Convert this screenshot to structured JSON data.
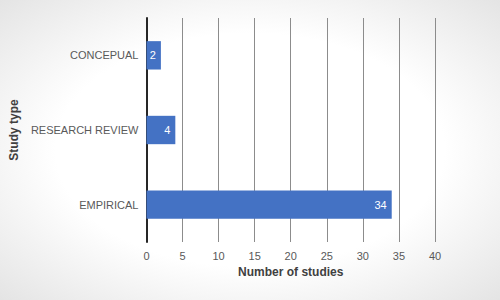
{
  "chart_data": {
    "type": "bar",
    "orientation": "horizontal",
    "categories": [
      "EMPIRICAL",
      "RESEARCH REVIEW",
      "CONCEPUAL"
    ],
    "values": [
      34,
      4,
      2
    ],
    "color": "#4472c4",
    "xlabel": "Number of studies",
    "ylabel": "Study type",
    "xlim": [
      0,
      40
    ],
    "xticks": [
      0,
      5,
      10,
      15,
      20,
      25,
      30,
      35,
      40
    ],
    "grid": true,
    "data_labels": true
  }
}
